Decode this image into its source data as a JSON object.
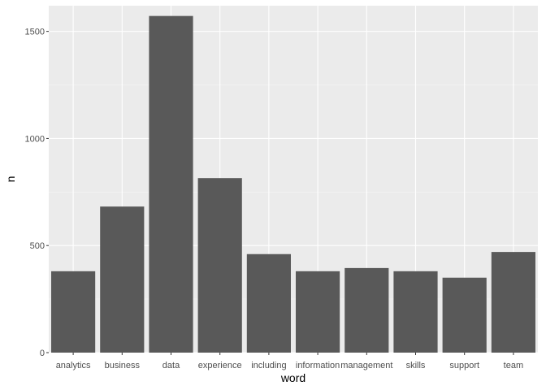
{
  "chart_data": {
    "type": "bar",
    "title": "",
    "xlabel": "word",
    "ylabel": "n",
    "categories": [
      "analytics",
      "business",
      "data",
      "experience",
      "including",
      "information",
      "management",
      "skills",
      "support",
      "team"
    ],
    "values": [
      380,
      682,
      1572,
      815,
      460,
      380,
      395,
      380,
      350,
      470
    ],
    "ylim": [
      0,
      1620
    ],
    "yticks": [
      0,
      500,
      1000,
      1500
    ],
    "grid": true,
    "legend": "none",
    "colors": {
      "bar": "#595959",
      "panel": "#ebebeb",
      "grid_major": "#ffffff",
      "grid_minor": "#f5f5f5",
      "tick_text": "#4d4d4d",
      "axis_title": "#000000"
    }
  }
}
